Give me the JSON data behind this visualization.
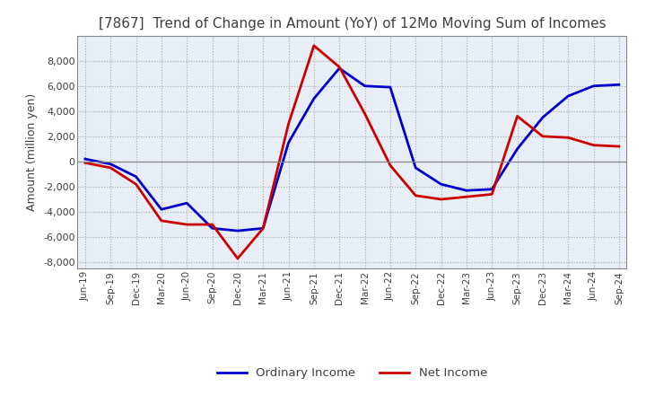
{
  "title": "[7867]  Trend of Change in Amount (YoY) of 12Mo Moving Sum of Incomes",
  "ylabel": "Amount (million yen)",
  "ylim": [
    -8500,
    10000
  ],
  "yticks": [
    -8000,
    -6000,
    -4000,
    -2000,
    0,
    2000,
    4000,
    6000,
    8000
  ],
  "x_labels": [
    "Jun-19",
    "Sep-19",
    "Dec-19",
    "Mar-20",
    "Jun-20",
    "Sep-20",
    "Dec-20",
    "Mar-21",
    "Jun-21",
    "Sep-21",
    "Dec-21",
    "Mar-22",
    "Jun-22",
    "Sep-22",
    "Dec-22",
    "Mar-23",
    "Jun-23",
    "Sep-23",
    "Dec-23",
    "Mar-24",
    "Jun-24",
    "Sep-24"
  ],
  "ordinary_income": [
    200,
    -200,
    -1200,
    -3800,
    -3300,
    -5300,
    -5500,
    -5300,
    1500,
    5000,
    7400,
    6000,
    5900,
    -500,
    -1800,
    -2300,
    -2200,
    1000,
    3500,
    5200,
    6000,
    6100
  ],
  "net_income": [
    -100,
    -500,
    -1800,
    -4700,
    -5000,
    -5000,
    -7700,
    -5300,
    3000,
    9200,
    7500,
    3800,
    -300,
    -2700,
    -3000,
    -2800,
    -2600,
    3600,
    2000,
    1900,
    1300,
    1200
  ],
  "ordinary_color": "#0000cc",
  "net_color": "#cc0000",
  "background_color": "#ffffff",
  "plot_bg_color": "#e8eef5",
  "grid_color": "#aaaaaa",
  "title_color": "#404040",
  "axis_line_color": "#888888",
  "legend_ordinary": "Ordinary Income",
  "legend_net": "Net Income"
}
